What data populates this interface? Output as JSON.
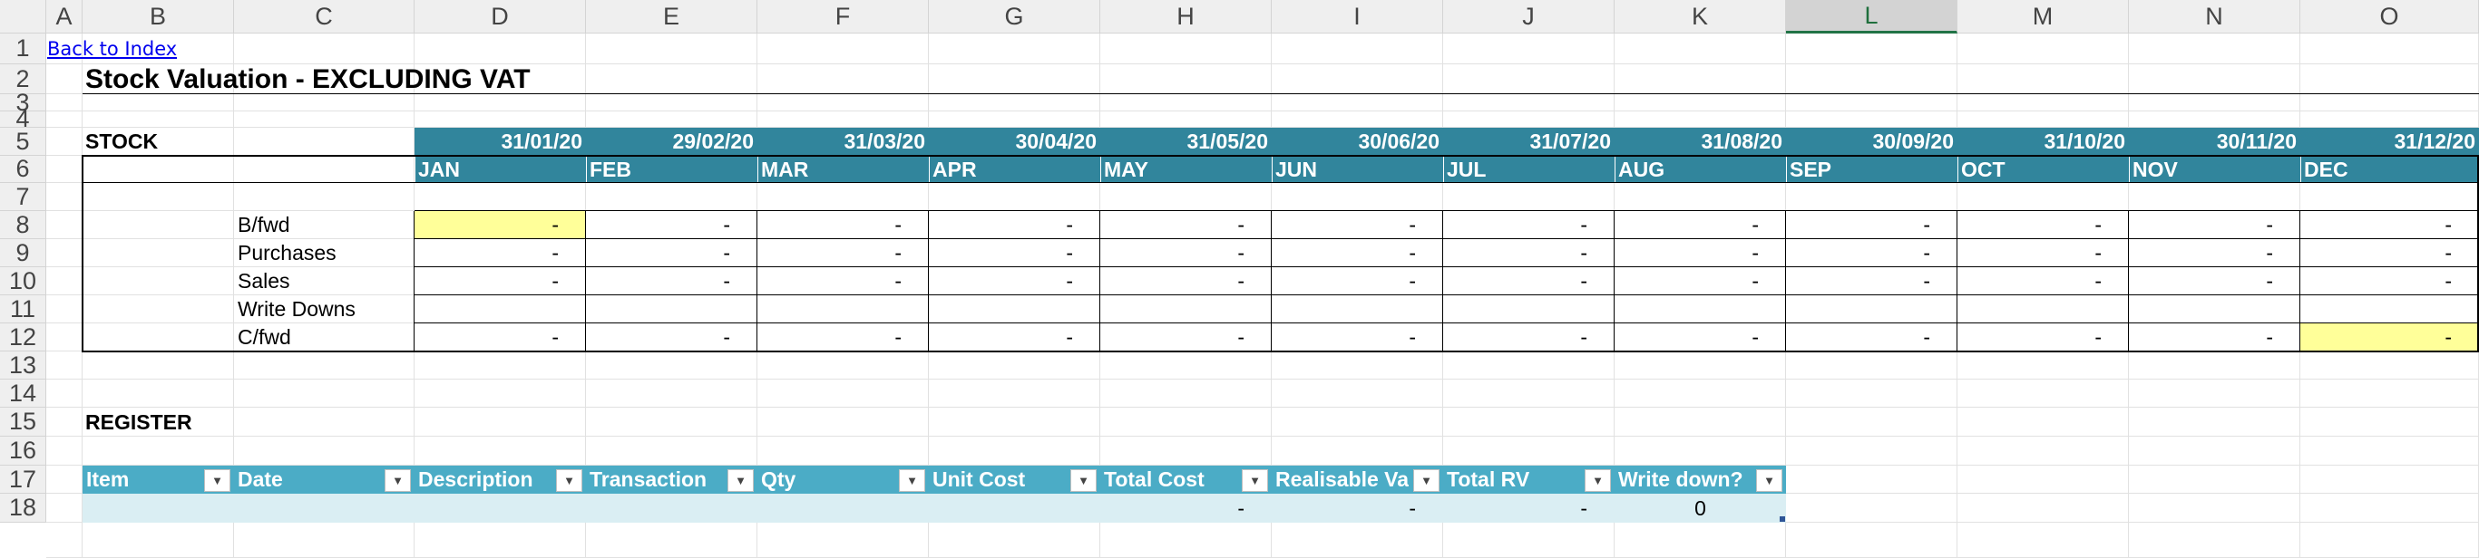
{
  "columns": [
    "A",
    "B",
    "C",
    "D",
    "E",
    "F",
    "G",
    "H",
    "I",
    "J",
    "K",
    "L",
    "M",
    "N",
    "O"
  ],
  "selected_column": "L",
  "rows": [
    "1",
    "2",
    "3",
    "4",
    "5",
    "6",
    "7",
    "8",
    "9",
    "10",
    "11",
    "12",
    "13",
    "14",
    "15",
    "16",
    "17",
    "18"
  ],
  "link_text": "Back to Index",
  "title": "Stock Valuation - EXCLUDING VAT",
  "stock_label": "STOCK",
  "dates": [
    "31/01/20",
    "29/02/20",
    "31/03/20",
    "30/04/20",
    "31/05/20",
    "30/06/20",
    "31/07/20",
    "31/08/20",
    "30/09/20",
    "31/10/20",
    "30/11/20",
    "31/12/20"
  ],
  "months": [
    "JAN",
    "FEB",
    "MAR",
    "APR",
    "MAY",
    "JUN",
    "JUL",
    "AUG",
    "SEP",
    "OCT",
    "NOV",
    "DEC"
  ],
  "row_labels": [
    "B/fwd",
    "Purchases",
    "Sales",
    "Write Downs",
    "C/fwd"
  ],
  "dash": "-",
  "register_label": "REGISTER",
  "register_headers": [
    "Item",
    "Date",
    "Description",
    "Transaction",
    "Qty",
    "Unit Cost",
    "Total Cost",
    "Realisable Va",
    "Total RV",
    "Write down?"
  ],
  "register_row": {
    "total_cost": "-",
    "realisable_value": "-",
    "total_rv": "-",
    "write_down": "0"
  },
  "colors": {
    "teal": "#31859c",
    "table_header": "#4bacc6",
    "highlight": "#ffff99",
    "register_band": "#daeef3"
  }
}
